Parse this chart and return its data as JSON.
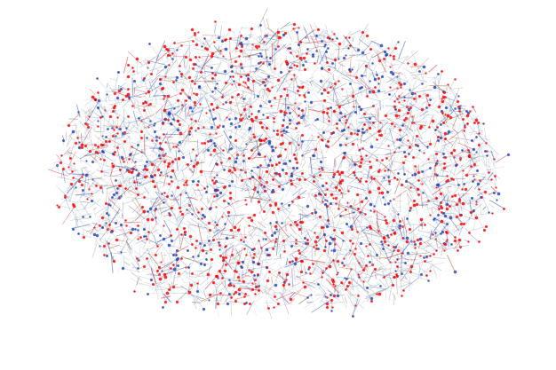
{
  "background_color": "#ffffff",
  "figsize": [
    6.26,
    4.17
  ],
  "dpi": 100,
  "ribbon_colors_full": [
    "#0a006e",
    "#1500a0",
    "#2200cc",
    "#3300ee",
    "#2244dd",
    "#1166ee",
    "#0088ff",
    "#0099dd",
    "#00aaaa",
    "#009977",
    "#008844",
    "#006622",
    "#224400",
    "#446600",
    "#778800",
    "#99aa00",
    "#bbcc00",
    "#ddcc00",
    "#ffcc00",
    "#ffaa00",
    "#ff8800",
    "#ff6600",
    "#ff4400",
    "#ee2200",
    "#cc0000",
    "#aa0000"
  ],
  "side_chain_colors": [
    "#aabbcc",
    "#8899bb",
    "#99aacc",
    "#bbccdd",
    "#778899",
    "#cc3333",
    "#dd2222",
    "#3355cc",
    "#2244bb",
    "#996644"
  ],
  "oxygen_color": "#ff0000",
  "nitrogen_color": "#2244bb"
}
